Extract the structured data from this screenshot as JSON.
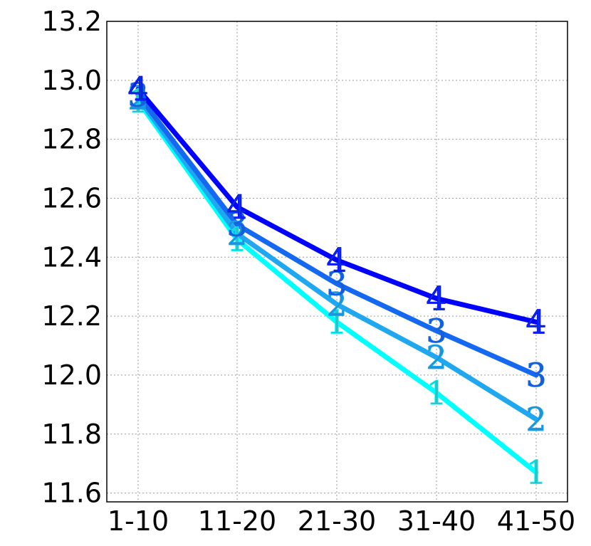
{
  "chart_data": {
    "type": "line",
    "title": "",
    "xlabel": "",
    "ylabel": "",
    "categories": [
      "1-10",
      "11-20",
      "21-30",
      "31-40",
      "41-50"
    ],
    "ylim": [
      11.57,
      13.2
    ],
    "yticks": [
      11.6,
      11.8,
      12.0,
      12.2,
      12.4,
      12.6,
      12.8,
      13.0,
      13.2
    ],
    "ytick_labels": [
      "11.6",
      "11.8",
      "12.0",
      "12.2",
      "12.4",
      "12.6",
      "12.8",
      "13.0",
      "13.2"
    ],
    "grid": true,
    "legend": "none",
    "series": [
      {
        "marker": "1",
        "color": "#00ffff",
        "text_color": "#2bc3c9",
        "values": [
          12.93,
          12.46,
          12.18,
          11.94,
          11.67
        ]
      },
      {
        "marker": "2",
        "color": "#1fa8f0",
        "text_color": "#1c94d8",
        "values": [
          12.94,
          12.48,
          12.24,
          12.06,
          11.85
        ]
      },
      {
        "marker": "3",
        "color": "#1469f0",
        "text_color": "#1560d8",
        "values": [
          12.95,
          12.51,
          12.31,
          12.15,
          12.0
        ]
      },
      {
        "marker": "4",
        "color": "#0000ff",
        "text_color": "#0a2ce0",
        "values": [
          12.97,
          12.57,
          12.39,
          12.26,
          12.18
        ]
      }
    ]
  }
}
